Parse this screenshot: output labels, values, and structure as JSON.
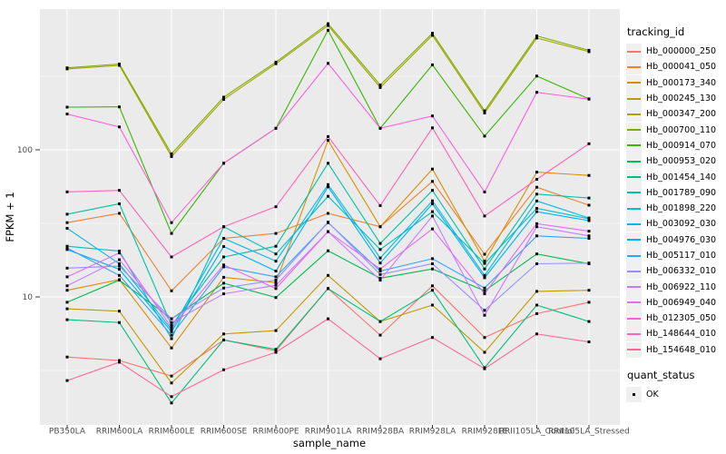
{
  "legend": {
    "tracking_title": "tracking_id",
    "quant_title": "quant_status",
    "quant_items": [
      "OK"
    ]
  },
  "colors": {
    "panel_bg": "#EBEBEB",
    "grid": "#FFFFFF",
    "point": "#000000",
    "tick_text": "#4D4D4D",
    "legend_key_bg": "#F0F0F0"
  },
  "chart_data": {
    "type": "line",
    "title": "",
    "xlabel": "sample_name",
    "ylabel": "FPKM + 1",
    "yscale": "log10",
    "ytick_labels": [
      "100",
      "10"
    ],
    "yticks": [
      100,
      10
    ],
    "ylim": [
      1.5,
      900
    ],
    "grid": "white major/minor gridlines on gray panel",
    "legend_position": "right",
    "point_shape": "filled-square",
    "categories": [
      "PB350LA",
      "RRIM600LA",
      "RRIM600LE",
      "RRIM600SE",
      "RRIM600PE",
      "RRIM901LA",
      "RRIM928BA",
      "RRIM928LA",
      "RRIM928LE",
      "RRII105LA_Control",
      "RRII105LA_Stressed"
    ],
    "series": [
      {
        "name": "Hb_000000_250",
        "color": "#F8766D",
        "values": [
          3.9,
          3.7,
          2.9,
          5.1,
          4.3,
          11.4,
          5.5,
          11.9,
          5.3,
          7.7,
          9.2
        ]
      },
      {
        "name": "Hb_000041_050",
        "color": "#EA8331",
        "values": [
          32,
          37,
          11,
          25,
          27,
          37,
          30,
          61,
          19.5,
          55.7,
          42
        ]
      },
      {
        "name": "Hb_000173_340",
        "color": "#D89000",
        "values": [
          11.1,
          13.1,
          4.5,
          13.6,
          12.5,
          116,
          30,
          74,
          17.5,
          70.5,
          67
        ]
      },
      {
        "name": "Hb_000245_130",
        "color": "#C09B00",
        "values": [
          8.3,
          8.0,
          2.6,
          5.6,
          5.9,
          14,
          6.8,
          8.8,
          4.2,
          10.9,
          11.1
        ]
      },
      {
        "name": "Hb_000347_200",
        "color": "#A3A500",
        "values": [
          355,
          375,
          90,
          220,
          385,
          700,
          265,
          600,
          178,
          575,
          465
        ]
      },
      {
        "name": "Hb_000700_110",
        "color": "#7CAE00",
        "values": [
          361,
          383,
          94,
          228,
          395,
          720,
          276,
          620,
          184,
          595,
          475
        ]
      },
      {
        "name": "Hb_000914_070",
        "color": "#39B600",
        "values": [
          195,
          196,
          27,
          81,
          140,
          650,
          140,
          378,
          124,
          317,
          222
        ]
      },
      {
        "name": "Hb_000953_020",
        "color": "#00BB4E",
        "values": [
          9.2,
          13.0,
          7.1,
          12.4,
          9.9,
          20.6,
          13.4,
          15.5,
          11.0,
          19.6,
          16.8
        ]
      },
      {
        "name": "Hb_001454_140",
        "color": "#00BF7D",
        "values": [
          7.0,
          6.7,
          1.9,
          5.1,
          4.4,
          11.4,
          6.8,
          11.1,
          3.3,
          8.8,
          6.8
        ]
      },
      {
        "name": "Hb_001789_090",
        "color": "#00C1A3",
        "values": [
          36.5,
          43,
          6.4,
          18.7,
          22.1,
          81,
          23.1,
          53,
          15.5,
          50,
          47
        ]
      },
      {
        "name": "Hb_001898_220",
        "color": "#00BFC4",
        "values": [
          22.1,
          20.5,
          5.2,
          30,
          19.6,
          48.3,
          21,
          38,
          16.9,
          40,
          34
        ]
      },
      {
        "name": "Hb_003092_030",
        "color": "#00BAE0",
        "values": [
          29.3,
          16.8,
          6.0,
          25,
          17.5,
          58,
          18.4,
          45,
          14.0,
          44.9,
          34.4
        ]
      },
      {
        "name": "Hb_004976_030",
        "color": "#00B0F6",
        "values": [
          21.0,
          15.4,
          5.8,
          22,
          15.0,
          56,
          17.0,
          43,
          13.5,
          38,
          33
        ]
      },
      {
        "name": "Hb_005117_010",
        "color": "#35A2FF",
        "values": [
          21.5,
          14.0,
          5.5,
          16,
          13.7,
          32,
          15.0,
          18.2,
          11.5,
          26,
          25
        ]
      },
      {
        "name": "Hb_006332_010",
        "color": "#9590FF",
        "values": [
          15.7,
          16.2,
          7.1,
          11.5,
          13.0,
          32.2,
          14.2,
          16.8,
          8.1,
          16.8,
          17
        ]
      },
      {
        "name": "Hb_006922_110",
        "color": "#C77CFF",
        "values": [
          11.9,
          17.9,
          6.7,
          10.5,
          12.0,
          27.8,
          13.0,
          35.5,
          7.5,
          30,
          26
        ]
      },
      {
        "name": "Hb_006949_040",
        "color": "#E76BF3",
        "values": [
          13.7,
          19.9,
          6.2,
          16.5,
          11.4,
          27.8,
          15.5,
          29,
          10.5,
          31.5,
          28
        ]
      },
      {
        "name": "Hb_012305_050",
        "color": "#FA62DB",
        "values": [
          175,
          143,
          32,
          81,
          140,
          387,
          140,
          170,
          51.7,
          246,
          221
        ]
      },
      {
        "name": "Hb_148644_010",
        "color": "#FF62BC",
        "values": [
          51.8,
          53,
          18.7,
          30,
          41,
          123,
          41.8,
          141,
          35.5,
          63,
          110
        ]
      },
      {
        "name": "Hb_154648_010",
        "color": "#FF6A98",
        "values": [
          2.7,
          3.6,
          2.1,
          3.2,
          4.2,
          7.1,
          3.8,
          5.3,
          3.25,
          5.6,
          4.95
        ]
      }
    ]
  }
}
